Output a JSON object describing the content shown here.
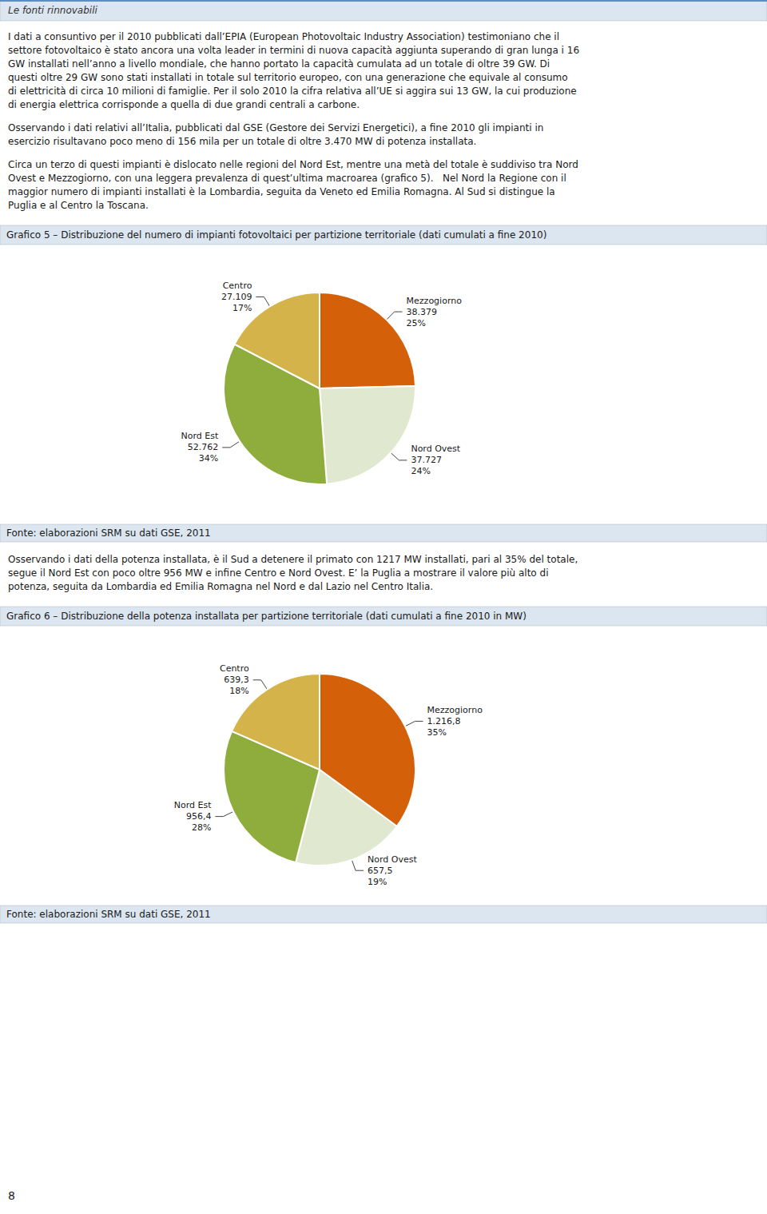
{
  "header": "Le fonti rinnovabili",
  "page_number": "8",
  "chart_data": [
    {
      "type": "pie",
      "intro": [
        [
          "I dati a consuntivo per il 2010 pubblicati dall’EPIA (European Photovoltaic Industry Association) testimoniano che il",
          "settore fotovoltaico è stato ancora una volta leader in termini di nuova capacità aggiunta superando di gran lunga i 16",
          "GW installati nell’anno a livello mondiale, che hanno portato la capacità cumulata ad un totale di oltre 39 GW. Di",
          "questi oltre 29 GW sono stati installati in totale sul territorio europeo, con una generazione che equivale al consumo",
          "di elettricità di circa 10 milioni di famiglie. Per il solo 2010 la cifra relativa all’UE si aggira sui 13 GW, la cui produzione",
          "di energia elettrica corrisponde a quella di due grandi centrali a carbone."
        ],
        [
          "Osservando i dati relativi all’Italia, pubblicati dal GSE (Gestore dei Servizi Energetici), a fine 2010 gli impianti in",
          "esercizio risultavano poco meno di 156 mila per un totale di oltre 3.470 MW di potenza installata."
        ],
        [
          "Circa un terzo di questi impianti è dislocato nelle regioni del Nord Est, mentre una metà del totale è suddiviso tra Nord",
          "Ovest e Mezzogiorno, con una leggera prevalenza di quest’ultima macroarea (grafico 5).   Nel Nord la Regione con il",
          "maggior numero di impianti installati è la Lombardia, seguita da Veneto ed Emilia Romagna. Al Sud si distingue la",
          "Puglia e al Centro la Toscana."
        ]
      ],
      "title": "Grafico 5 – Distribuzione del numero di impianti fotovoltaici per partizione territoriale (dati cumulati a fine 2010)",
      "categories": [
        "Mezzogiorno",
        "Nord Ovest",
        "Nord Est",
        "Centro"
      ],
      "values": [
        38379,
        37727,
        52762,
        27109
      ],
      "value_labels": [
        "38.379",
        "37.727",
        "52.762",
        "27.109"
      ],
      "share_labels": [
        "25%",
        "24%",
        "34%",
        "17%"
      ],
      "colors": [
        "#d4600a",
        "#e0e8d0",
        "#8fad3c",
        "#d4b44a"
      ],
      "source": "Fonte: elaborazioni SRM su dati GSE, 2011"
    },
    {
      "type": "pie",
      "intro": [
        [
          "Osservando i dati della potenza installata, è il Sud a detenere il primato con 1217 MW installati, pari al 35% del totale,",
          "segue il Nord Est con poco oltre 956 MW e infine Centro e Nord Ovest. E’ la Puglia a mostrare il valore più alto di",
          "potenza, seguita da Lombardia ed Emilia Romagna nel Nord e dal Lazio nel Centro Italia."
        ]
      ],
      "title": "Grafico 6 – Distribuzione della potenza installata per partizione territoriale (dati cumulati a fine 2010 in MW)",
      "categories": [
        "Mezzogiorno",
        "Nord Ovest",
        "Nord Est",
        "Centro"
      ],
      "values": [
        1216.8,
        657.5,
        956.4,
        639.3
      ],
      "value_labels": [
        "1.216,8",
        "657,5",
        "956,4",
        "639,3"
      ],
      "share_labels": [
        "35%",
        "19%",
        "28%",
        "18%"
      ],
      "colors": [
        "#d4600a",
        "#e0e8d0",
        "#8fad3c",
        "#d4b44a"
      ],
      "source": "Fonte: elaborazioni SRM su dati GSE, 2011"
    }
  ]
}
